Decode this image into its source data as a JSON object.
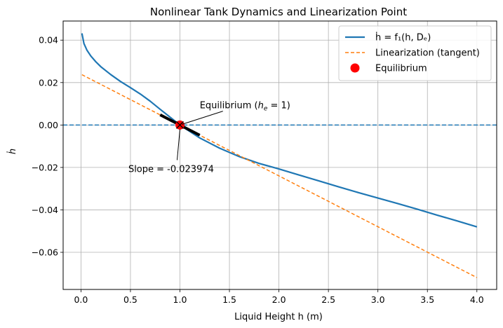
{
  "chart_data": {
    "type": "line",
    "title": "Nonlinear Tank Dynamics and Linearization Point",
    "xlabel": "Liquid Height h (m)",
    "ylabel": "ḣ",
    "xlim": [
      -0.18,
      4.2
    ],
    "ylim": [
      -0.0775,
      0.049
    ],
    "grid": true,
    "legend_position": "top-right",
    "x_ticks": [
      0.0,
      0.5,
      1.0,
      1.5,
      2.0,
      2.5,
      3.0,
      3.5,
      4.0
    ],
    "x_tick_labels": [
      "0.0",
      "0.5",
      "1.0",
      "1.5",
      "2.0",
      "2.5",
      "3.0",
      "3.5",
      "4.0"
    ],
    "y_ticks": [
      0.04,
      0.02,
      0.0,
      -0.02,
      -0.04,
      -0.06
    ],
    "y_tick_labels": [
      "0.04",
      "0.02",
      "0.00",
      "−0.02",
      "−0.04",
      "−0.06"
    ],
    "series": [
      {
        "name": "ḣ = f₁(h, Dₑ)",
        "style": "solid",
        "color": "#1f77b4",
        "x": [
          0.01,
          0.03,
          0.06,
          0.1,
          0.15,
          0.2,
          0.3,
          0.4,
          0.5,
          0.6,
          0.7,
          0.8,
          0.9,
          1.0,
          1.2,
          1.4,
          1.6,
          1.8,
          2.0,
          2.2,
          2.4,
          2.6,
          2.8,
          3.0,
          3.2,
          3.4,
          3.6,
          3.8,
          4.0
        ],
        "y": [
          0.0432,
          0.0384,
          0.0353,
          0.0325,
          0.0298,
          0.0275,
          0.0238,
          0.0205,
          0.0176,
          0.0146,
          0.0112,
          0.0074,
          0.0037,
          0.0,
          -0.0061,
          -0.0109,
          -0.0149,
          -0.0181,
          -0.0207,
          -0.0235,
          -0.0263,
          -0.0291,
          -0.0318,
          -0.0344,
          -0.037,
          -0.0397,
          -0.0425,
          -0.0452,
          -0.048
        ]
      },
      {
        "name": "Linearization (tangent)",
        "style": "dashed",
        "color": "#ff7f0e",
        "x": [
          0.01,
          4.0
        ],
        "y": [
          0.0237,
          -0.0719
        ]
      },
      {
        "name": "Equilibrium",
        "style": "marker",
        "color": "#ff0000",
        "x": [
          1.0
        ],
        "y": [
          0.0
        ]
      }
    ],
    "extra_lines": {
      "zero_line": {
        "y": 0.0,
        "color": "#1f77b4",
        "style": "dashed"
      },
      "slope_segment": {
        "x": [
          0.8,
          1.2
        ],
        "y": [
          0.0048,
          -0.0048
        ],
        "color": "#000000"
      }
    },
    "annotations": [
      {
        "text": "Equilibrium (",
        "math": "h",
        "sub": "e",
        "tail": " = 1)",
        "point": [
          1.0,
          0.0
        ],
        "text_pos": [
          1.2,
          0.0095
        ]
      },
      {
        "text": "Slope = -0.023974",
        "point": [
          1.0,
          -0.0007
        ],
        "text_pos": [
          0.5,
          -0.0205
        ]
      }
    ]
  },
  "legend": {
    "items": [
      {
        "label": "ḣ = f₁(h, Dₑ)",
        "style": "solid",
        "color": "#1f77b4"
      },
      {
        "label": "Linearization (tangent)",
        "style": "dashed",
        "color": "#ff7f0e"
      },
      {
        "label": "Equilibrium",
        "style": "marker",
        "color": "#ff0000"
      }
    ]
  }
}
